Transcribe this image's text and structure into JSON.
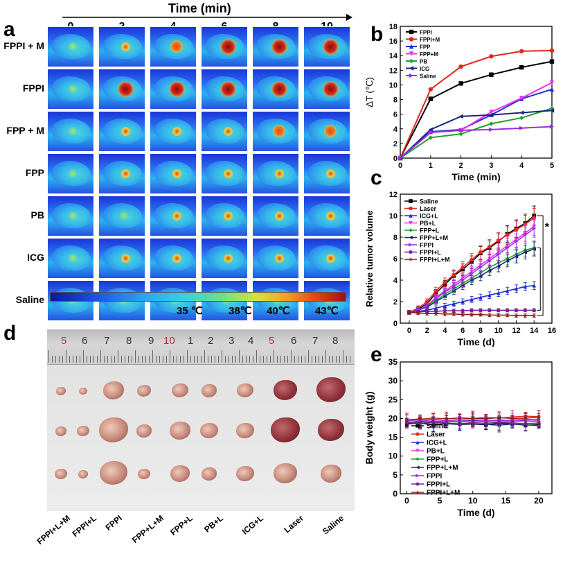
{
  "panel_a": {
    "letter": "a",
    "time_label": "Time (min)",
    "times": [
      "0",
      "2",
      "4",
      "6",
      "8",
      "10"
    ],
    "groups": [
      "FPPI + M",
      "FPPI",
      "FPP + M",
      "FPP",
      "PB",
      "ICG",
      "Saline"
    ],
    "colorbar_labels": [
      "35 ℃",
      "38℃",
      "40℃",
      "43℃"
    ]
  },
  "panel_b": {
    "letter": "b"
  },
  "panel_c": {
    "letter": "c",
    "significance": "*"
  },
  "panel_d": {
    "letter": "d",
    "ruler_numbers": [
      "5",
      "6",
      "7",
      "8",
      "9",
      "10",
      "1",
      "2",
      "3",
      "4",
      "5",
      "6",
      "7",
      "8"
    ],
    "groups": [
      "FPPI+L+M",
      "FPPI+L",
      "FPPI",
      "FPP+L+M",
      "FPP+L",
      "PB+L",
      "ICG+L",
      "Laser",
      "Saline"
    ]
  },
  "panel_e": {
    "letter": "e"
  },
  "chart_data": [
    {
      "id": "b",
      "type": "line",
      "xlabel": "Time (min)",
      "ylabel": "ΔT (℃)",
      "xlim": [
        0,
        5
      ],
      "ylim": [
        0,
        18
      ],
      "xticks": [
        0,
        1,
        2,
        3,
        4,
        5
      ],
      "yticks": [
        0,
        2,
        4,
        6,
        8,
        10,
        12,
        14,
        16,
        18
      ],
      "x": [
        0,
        1,
        2,
        3,
        4,
        5
      ],
      "legend_position": "top-left",
      "series": [
        {
          "name": "FPPI",
          "color": "#000000",
          "marker": "square",
          "values": [
            0,
            8.1,
            10.2,
            11.4,
            12.4,
            13.2
          ]
        },
        {
          "name": "FPPI+M",
          "color": "#e3261f",
          "marker": "circle",
          "values": [
            0,
            9.4,
            12.5,
            13.9,
            14.6,
            14.7
          ]
        },
        {
          "name": "FPP",
          "color": "#1b2fd0",
          "marker": "triangle-up",
          "values": [
            0,
            3.6,
            3.9,
            5.9,
            8.1,
            9.4
          ]
        },
        {
          "name": "FPP+M",
          "color": "#f02ff0",
          "marker": "triangle-down",
          "values": [
            0,
            3.5,
            3.8,
            6.3,
            8.2,
            10.3
          ]
        },
        {
          "name": "PB",
          "color": "#1fa12a",
          "marker": "diamond",
          "values": [
            0,
            2.8,
            3.3,
            4.7,
            5.5,
            6.8
          ]
        },
        {
          "name": "ICG",
          "color": "#1a2580",
          "marker": "triangle-left",
          "values": [
            0,
            3.9,
            5.7,
            5.9,
            6.2,
            6.5
          ]
        },
        {
          "name": "Saline",
          "color": "#9a2fe0",
          "marker": "triangle-right",
          "values": [
            0,
            3.5,
            3.8,
            3.9,
            4.1,
            4.3
          ]
        }
      ]
    },
    {
      "id": "c",
      "type": "line",
      "xlabel": "Time (d)",
      "ylabel": "Relative tumor volume",
      "xlim": [
        -1,
        16
      ],
      "ylim": [
        0,
        12
      ],
      "xticks": [
        0,
        2,
        4,
        6,
        8,
        10,
        12,
        14,
        16
      ],
      "yticks": [
        0,
        2,
        4,
        6,
        8,
        10,
        12
      ],
      "x": [
        0,
        1,
        2,
        3,
        4,
        5,
        6,
        7,
        8,
        9,
        10,
        11,
        12,
        13,
        14
      ],
      "legend_position": "top-left",
      "series": [
        {
          "name": "Saline",
          "color": "#000000",
          "marker": "square",
          "values": [
            1,
            1.3,
            1.8,
            2.8,
            3.6,
            4.4,
            5,
            5.7,
            6.5,
            7,
            7.6,
            8.3,
            8.8,
            9.3,
            10
          ]
        },
        {
          "name": "Laser",
          "color": "#e3261f",
          "marker": "circle",
          "values": [
            1,
            1.4,
            2,
            3,
            3.8,
            4.5,
            5.2,
            5.9,
            6.6,
            7.1,
            7.7,
            8.2,
            8.7,
            9.2,
            9.8
          ]
        },
        {
          "name": "ICG+L",
          "color": "#1b2fd0",
          "marker": "triangle-up",
          "values": [
            1,
            1.1,
            1.2,
            1.4,
            1.6,
            1.8,
            2,
            2.2,
            2.4,
            2.6,
            2.8,
            3,
            3.2,
            3.4,
            3.5
          ]
        },
        {
          "name": "PB+L",
          "color": "#f02ff0",
          "marker": "triangle-down",
          "values": [
            1,
            1.2,
            1.6,
            2.4,
            3,
            3.6,
            4.2,
            4.8,
            5.4,
            6,
            6.6,
            7.2,
            7.8,
            8.4,
            9
          ]
        },
        {
          "name": "FPP+L",
          "color": "#1fa12a",
          "marker": "diamond",
          "values": [
            1,
            1.2,
            1.5,
            2.1,
            2.7,
            3.2,
            3.7,
            4.2,
            4.7,
            5.2,
            5.6,
            6,
            6.4,
            6.8,
            7
          ]
        },
        {
          "name": "FPP+L+M",
          "color": "#1a2580",
          "marker": "triangle-left",
          "values": [
            1,
            1.2,
            1.5,
            2,
            2.5,
            3,
            3.5,
            4,
            4.4,
            4.9,
            5.3,
            5.8,
            6.2,
            6.6,
            6.9
          ]
        },
        {
          "name": "FPPI",
          "color": "#9a2fe0",
          "marker": "triangle-right",
          "values": [
            1,
            1.2,
            1.6,
            2.3,
            2.9,
            3.4,
            4,
            4.6,
            5.2,
            5.8,
            6.4,
            7,
            7.6,
            8.2,
            8.8
          ]
        },
        {
          "name": "FPPI+L",
          "color": "#7a1f9e",
          "marker": "hexagon",
          "values": [
            1,
            1.05,
            1.1,
            1.1,
            1.15,
            1.15,
            1.15,
            1.2,
            1.2,
            1.2,
            1.2,
            1.2,
            1.2,
            1.2,
            1.2
          ]
        },
        {
          "name": "FPPI+L+M",
          "color": "#8b1a1a",
          "marker": "star",
          "values": [
            1,
            0.95,
            0.9,
            0.9,
            0.85,
            0.85,
            0.8,
            0.8,
            0.8,
            0.75,
            0.75,
            0.75,
            0.7,
            0.7,
            0.7
          ]
        }
      ]
    },
    {
      "id": "e",
      "type": "line",
      "xlabel": "Time (d)",
      "ylabel": "Body weight (g)",
      "xlim": [
        -1,
        22
      ],
      "ylim": [
        0,
        35
      ],
      "xticks": [
        0,
        5,
        10,
        15,
        20
      ],
      "yticks": [
        0,
        5,
        10,
        15,
        20,
        25,
        30,
        35
      ],
      "x": [
        0,
        2,
        4,
        6,
        8,
        10,
        12,
        14,
        16,
        18,
        20
      ],
      "legend_position": "center-left",
      "series": [
        {
          "name": "Saline",
          "color": "#000000",
          "marker": "square",
          "values": [
            18.5,
            18.8,
            18.2,
            18.6,
            18.4,
            18.5,
            18.3,
            18.7,
            18.5,
            18.2,
            18.4
          ]
        },
        {
          "name": "Laser",
          "color": "#e3261f",
          "marker": "circle",
          "values": [
            19.5,
            19.8,
            20.1,
            19.9,
            20.2,
            20.0,
            20.3,
            20.1,
            20.4,
            20.6,
            20.5
          ]
        },
        {
          "name": "ICG+L",
          "color": "#1b2fd0",
          "marker": "triangle-up",
          "values": [
            19.0,
            19.3,
            19.1,
            19.4,
            19.2,
            19.5,
            19.3,
            19.6,
            19.4,
            19.5,
            19.6
          ]
        },
        {
          "name": "PB+L",
          "color": "#f02ff0",
          "marker": "triangle-down",
          "values": [
            19.2,
            19.0,
            19.4,
            19.1,
            19.3,
            19.2,
            19.5,
            19.3,
            19.4,
            19.6,
            19.5
          ]
        },
        {
          "name": "FPP+L",
          "color": "#1fa12a",
          "marker": "diamond",
          "values": [
            18.8,
            19.1,
            18.9,
            19.2,
            19.0,
            19.3,
            19.1,
            19.0,
            19.2,
            19.1,
            19.3
          ]
        },
        {
          "name": "FPP+L+M",
          "color": "#1a2580",
          "marker": "triangle-left",
          "values": [
            18.6,
            18.9,
            18.4,
            18.7,
            18.5,
            18.6,
            18.4,
            18.2,
            18.5,
            18.3,
            18.1
          ]
        },
        {
          "name": "FPPI",
          "color": "#9a2fe0",
          "marker": "triangle-right",
          "values": [
            19.4,
            19.6,
            19.2,
            19.5,
            19.3,
            19.7,
            19.5,
            19.4,
            19.6,
            19.8,
            19.7
          ]
        },
        {
          "name": "FPPI+L",
          "color": "#7a1f9e",
          "marker": "hexagon",
          "values": [
            18.9,
            18.7,
            19.0,
            18.8,
            18.6,
            18.9,
            18.7,
            18.9,
            18.8,
            18.6,
            18.8
          ]
        },
        {
          "name": "FPPI+L+M",
          "color": "#8b1a1a",
          "marker": "star",
          "values": [
            19.6,
            19.9,
            19.7,
            20.0,
            19.8,
            20.1,
            19.9,
            20.2,
            20.0,
            20.1,
            20.3
          ]
        }
      ]
    }
  ]
}
